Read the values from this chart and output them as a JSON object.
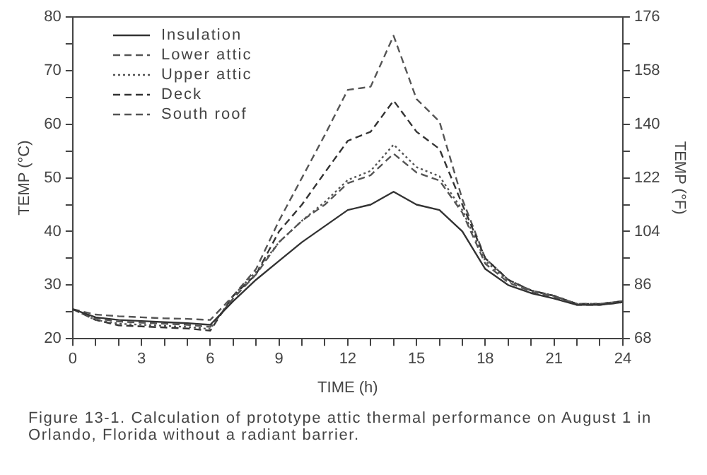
{
  "chart_data": {
    "type": "line",
    "xlabel": "TIME (h)",
    "ylabel": "TEMP (°C)",
    "y2label": "TEMP (°F)",
    "x": [
      0,
      1,
      2,
      3,
      4,
      5,
      6,
      7,
      8,
      9,
      10,
      11,
      12,
      13,
      14,
      15,
      16,
      17,
      18,
      19,
      20,
      21,
      22,
      23,
      24
    ],
    "series": [
      {
        "name": "Insulation",
        "color": "#333333",
        "line_style": "solid",
        "values": [
          25.5,
          24,
          23.5,
          23.3,
          23.1,
          22.9,
          22.6,
          27,
          31,
          34.5,
          38,
          41,
          44,
          45,
          47.4,
          45,
          44,
          40,
          33,
          30,
          28.5,
          27.5,
          26.3,
          26.3,
          26.8
        ]
      },
      {
        "name": "Lower attic",
        "color": "#555555",
        "line_style": "dashed",
        "values": [
          25.5,
          23.8,
          23.2,
          23,
          22.8,
          22.6,
          22.2,
          27.5,
          32,
          38,
          42,
          45,
          49,
          50.5,
          54.5,
          51,
          49.5,
          43.5,
          34,
          30.5,
          28.8,
          27.8,
          26.3,
          26.3,
          26.8
        ]
      },
      {
        "name": "Upper attic",
        "color": "#555555",
        "line_style": "dotted",
        "values": [
          25.5,
          23.5,
          22.8,
          22.6,
          22.4,
          22.2,
          21.8,
          28,
          32.5,
          38,
          42,
          45.5,
          49.6,
          51.3,
          56.2,
          52,
          50.3,
          44,
          34.5,
          30.8,
          29,
          28,
          26.5,
          26.5,
          27
        ]
      },
      {
        "name": "Deck",
        "color": "#333333",
        "line_style": "dashed",
        "values": [
          25.5,
          23.5,
          22.5,
          22.3,
          22.1,
          21.9,
          21.5,
          28,
          32,
          40,
          45,
          51,
          56.9,
          58.6,
          64.4,
          58.6,
          55.4,
          45,
          35,
          31,
          29,
          28,
          26.5,
          26.5,
          27
        ]
      },
      {
        "name": "South roof",
        "color": "#555555",
        "line_style": "dashed",
        "values": [
          25.5,
          24.5,
          24.2,
          24,
          23.8,
          23.7,
          23.5,
          28,
          33,
          42,
          50,
          58,
          66.4,
          67,
          76.5,
          64.7,
          60.5,
          46,
          35,
          31,
          29,
          28,
          26.5,
          26.5,
          27
        ]
      }
    ],
    "xlim": [
      0,
      24
    ],
    "xticks": [
      0,
      {
        "value": 1,
        "label": null
      },
      {
        "value": 2,
        "label": null
      },
      3,
      {
        "value": 4,
        "label": null
      },
      {
        "value": 5,
        "label": null
      },
      6,
      {
        "value": 7,
        "label": null
      },
      {
        "value": 8,
        "label": null
      },
      9,
      {
        "value": 10,
        "label": null
      },
      {
        "value": 11,
        "label": null
      },
      12,
      {
        "value": 13,
        "label": null
      },
      {
        "value": 14,
        "label": null
      },
      15,
      {
        "value": 16,
        "label": null
      },
      {
        "value": 17,
        "label": null
      },
      18,
      {
        "value": 19,
        "label": null
      },
      {
        "value": 20,
        "label": null
      },
      21,
      {
        "value": 22,
        "label": null
      },
      {
        "value": 23,
        "label": null
      },
      24
    ],
    "ylim": [
      20,
      80
    ],
    "yticks": [
      20,
      {
        "value": 25,
        "label": null
      },
      30,
      {
        "value": 35,
        "label": null
      },
      40,
      {
        "value": 45,
        "label": null
      },
      50,
      {
        "value": 55,
        "label": null
      },
      60,
      {
        "value": 65,
        "label": null
      },
      70,
      {
        "value": 75,
        "label": null
      },
      80
    ],
    "y2lim": [
      68,
      176
    ],
    "y2ticks": [
      68,
      {
        "value": 77,
        "label": null
      },
      86,
      {
        "value": 95,
        "label": null
      },
      104,
      {
        "value": 113,
        "label": null
      },
      122,
      {
        "value": 131,
        "label": null
      },
      140,
      {
        "value": 149,
        "label": null
      },
      158,
      {
        "value": 167,
        "label": null
      },
      176
    ],
    "grid": false,
    "legend": "top left",
    "marker": "none",
    "annotations": [
      "Figure 13-1. Calculation of prototype attic thermal performance on August 1 in Orlando, Florida without a radiant barrier."
    ]
  }
}
